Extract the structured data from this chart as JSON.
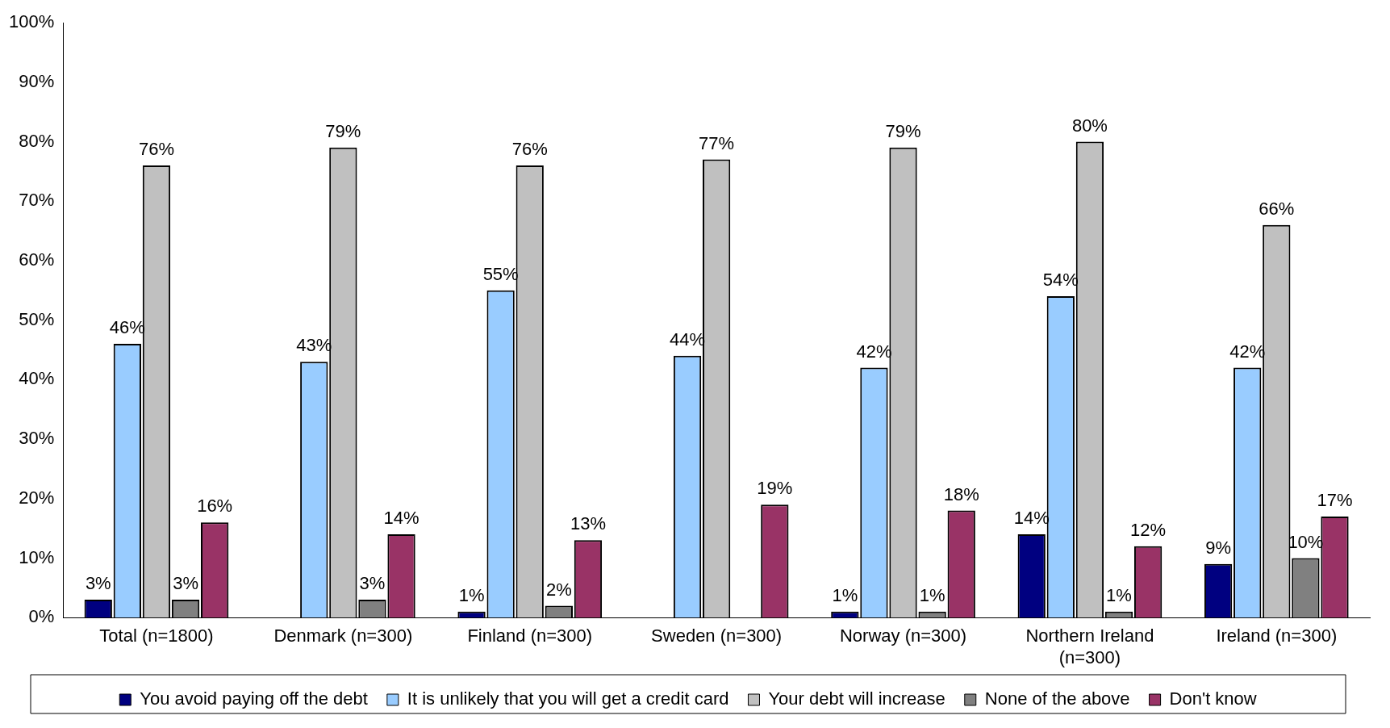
{
  "chart_data": {
    "type": "bar",
    "categories": [
      "Total (n=1800)",
      "Denmark (n=300)",
      "Finland (n=300)",
      "Sweden (n=300)",
      "Norway (n=300)",
      "Northern Ireland\n(n=300)",
      "Ireland (n=300)"
    ],
    "series": [
      {
        "name": "You avoid paying off the debt",
        "color": "#000080",
        "values": [
          3,
          null,
          1,
          null,
          1,
          14,
          9
        ],
        "value_labels": [
          "3%",
          null,
          "1%",
          null,
          "1%",
          "14%",
          "9%"
        ]
      },
      {
        "name": "It is unlikely that you will get a credit card",
        "color": "#99ccff",
        "values": [
          46,
          43,
          55,
          44,
          42,
          54,
          42
        ],
        "value_labels": [
          "46%",
          "43%",
          "55%",
          "44%",
          "42%",
          "54%",
          "42%"
        ]
      },
      {
        "name": "Your debt will increase",
        "color": "#c0c0c0",
        "values": [
          76,
          79,
          76,
          77,
          79,
          80,
          66
        ],
        "value_labels": [
          "76%",
          "79%",
          "76%",
          "77%",
          "79%",
          "80%",
          "66%"
        ]
      },
      {
        "name": "None of the above",
        "color": "#808080",
        "values": [
          3,
          3,
          2,
          null,
          1,
          1,
          10
        ],
        "value_labels": [
          "3%",
          "3%",
          "2%",
          null,
          "1%",
          "1%",
          "10%"
        ]
      },
      {
        "name": "Don't know",
        "color": "#993366",
        "values": [
          16,
          14,
          13,
          19,
          18,
          12,
          17
        ],
        "value_labels": [
          "16%",
          "14%",
          "13%",
          "19%",
          "18%",
          "12%",
          "17%"
        ]
      }
    ],
    "ylim": [
      0,
      100
    ],
    "yticks": [
      {
        "value": 0,
        "label": "0%"
      },
      {
        "value": 10,
        "label": "10%"
      },
      {
        "value": 20,
        "label": "20%"
      },
      {
        "value": 30,
        "label": "30%"
      },
      {
        "value": 40,
        "label": "40%"
      },
      {
        "value": 50,
        "label": "50%"
      },
      {
        "value": 60,
        "label": "60%"
      },
      {
        "value": 70,
        "label": "70%"
      },
      {
        "value": 80,
        "label": "80%"
      },
      {
        "value": 90,
        "label": "90%"
      },
      {
        "value": 100,
        "label": "100%"
      }
    ],
    "grid": false,
    "legend": "bottom"
  }
}
